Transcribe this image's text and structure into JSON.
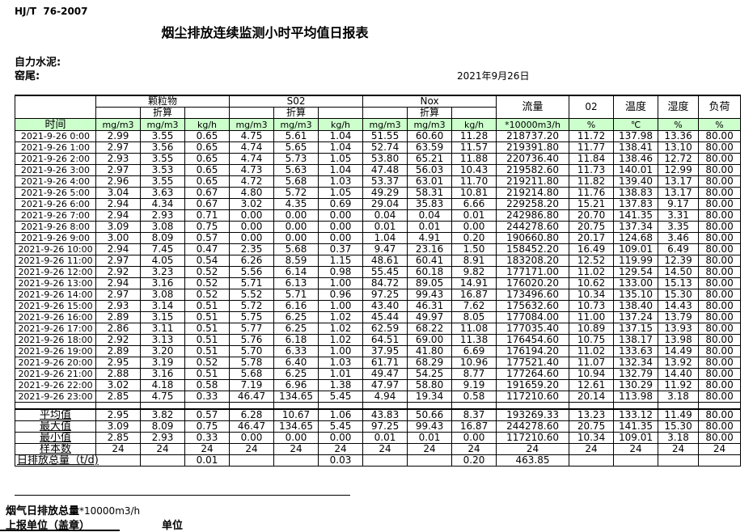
{
  "page": {
    "standard_code": "HJ/T  76-2007",
    "title": "烟尘排放连续监测小时平均值日报表",
    "company": "自力水泥:",
    "location": "窑尾:",
    "date": "2021年9月26日"
  },
  "colors": {
    "header_green": "#ccffcc"
  },
  "table": {
    "time_header": "时间",
    "converted_label": "折算",
    "groups": [
      {
        "label": "颗粒物",
        "units": [
          "mg/m3",
          "mg/m3",
          "kg/h"
        ]
      },
      {
        "label": "S02",
        "units": [
          "mg/m3",
          "mg/m3",
          "kg/h"
        ]
      },
      {
        "label": "Nox",
        "units": [
          "mg/m3",
          "mg/m3",
          "kg/h"
        ]
      }
    ],
    "single_columns": [
      {
        "label": "流量",
        "unit": "*10000m3/h"
      },
      {
        "label": "02",
        "unit": "%"
      },
      {
        "label": "温度",
        "unit": "℃"
      },
      {
        "label": "湿度",
        "unit": "%"
      },
      {
        "label": "负荷",
        "unit": "%"
      }
    ],
    "rows": [
      {
        "time": "2021-9-26 0:00",
        "values": [
          "2.99",
          "3.55",
          "0.65",
          "4.75",
          "5.61",
          "1.04",
          "51.55",
          "60.60",
          "11.28",
          "218737.20",
          "11.72",
          "137.98",
          "13.36",
          "80.00"
        ]
      },
      {
        "time": "2021-9-26 1:00",
        "values": [
          "2.97",
          "3.56",
          "0.65",
          "4.74",
          "5.65",
          "1.04",
          "52.74",
          "63.59",
          "11.57",
          "219391.80",
          "11.77",
          "138.41",
          "13.10",
          "80.00"
        ]
      },
      {
        "time": "2021-9-26 2:00",
        "values": [
          "2.93",
          "3.55",
          "0.65",
          "4.74",
          "5.73",
          "1.05",
          "53.80",
          "65.21",
          "11.88",
          "220736.40",
          "11.84",
          "138.46",
          "12.72",
          "80.00"
        ]
      },
      {
        "time": "2021-9-26 3:00",
        "values": [
          "2.97",
          "3.53",
          "0.65",
          "4.73",
          "5.63",
          "1.04",
          "47.48",
          "56.03",
          "10.43",
          "219582.60",
          "11.73",
          "140.01",
          "12.99",
          "80.00"
        ]
      },
      {
        "time": "2021-9-26 4:00",
        "values": [
          "2.96",
          "3.55",
          "0.65",
          "4.72",
          "5.68",
          "1.03",
          "53.37",
          "63.01",
          "11.70",
          "219211.80",
          "11.82",
          "139.40",
          "13.17",
          "80.00"
        ]
      },
      {
        "time": "2021-9-26 5:00",
        "values": [
          "3.04",
          "3.63",
          "0.67",
          "4.80",
          "5.72",
          "1.05",
          "49.29",
          "58.31",
          "10.81",
          "219214.80",
          "11.76",
          "138.83",
          "13.17",
          "80.00"
        ]
      },
      {
        "time": "2021-9-26 6:00",
        "values": [
          "2.94",
          "4.34",
          "0.67",
          "3.02",
          "4.35",
          "0.69",
          "29.04",
          "35.83",
          "6.66",
          "229258.20",
          "15.21",
          "137.83",
          "9.17",
          "80.00"
        ]
      },
      {
        "time": "2021-9-26 7:00",
        "values": [
          "2.94",
          "2.93",
          "0.71",
          "0.00",
          "0.00",
          "0.00",
          "0.04",
          "0.04",
          "0.01",
          "242986.80",
          "20.70",
          "141.35",
          "3.31",
          "80.00"
        ]
      },
      {
        "time": "2021-9-26 8:00",
        "values": [
          "3.09",
          "3.08",
          "0.75",
          "0.00",
          "0.00",
          "0.00",
          "0.01",
          "0.01",
          "0.00",
          "244278.60",
          "20.75",
          "137.34",
          "3.35",
          "80.00"
        ]
      },
      {
        "time": "2021-9-26 9:00",
        "values": [
          "3.00",
          "8.09",
          "0.57",
          "0.00",
          "0.00",
          "0.00",
          "1.04",
          "4.91",
          "0.20",
          "190660.80",
          "20.17",
          "124.68",
          "3.46",
          "80.00"
        ]
      },
      {
        "time": "2021-9-26 10:00",
        "values": [
          "2.94",
          "7.45",
          "0.47",
          "2.35",
          "5.68",
          "0.37",
          "9.47",
          "23.16",
          "1.50",
          "158452.20",
          "16.49",
          "109.01",
          "6.49",
          "80.00"
        ]
      },
      {
        "time": "2021-9-26 11:00",
        "values": [
          "2.97",
          "4.05",
          "0.54",
          "6.26",
          "8.59",
          "1.15",
          "48.61",
          "60.41",
          "8.91",
          "183208.20",
          "12.52",
          "119.99",
          "12.39",
          "80.00"
        ]
      },
      {
        "time": "2021-9-26 12:00",
        "values": [
          "2.92",
          "3.23",
          "0.52",
          "5.56",
          "6.14",
          "0.98",
          "55.45",
          "60.18",
          "9.82",
          "177171.00",
          "11.02",
          "129.54",
          "14.50",
          "80.00"
        ]
      },
      {
        "time": "2021-9-26 13:00",
        "values": [
          "2.94",
          "3.16",
          "0.52",
          "5.71",
          "6.13",
          "1.00",
          "84.72",
          "89.05",
          "14.91",
          "176020.20",
          "10.62",
          "133.00",
          "15.13",
          "80.00"
        ]
      },
      {
        "time": "2021-9-26 14:00",
        "values": [
          "2.97",
          "3.08",
          "0.52",
          "5.52",
          "5.71",
          "0.96",
          "97.25",
          "99.43",
          "16.87",
          "173496.60",
          "10.34",
          "135.10",
          "15.30",
          "80.00"
        ]
      },
      {
        "time": "2021-9-26 15:00",
        "values": [
          "2.93",
          "3.14",
          "0.51",
          "5.72",
          "6.16",
          "1.00",
          "43.40",
          "46.31",
          "7.62",
          "175632.60",
          "10.73",
          "138.40",
          "14.43",
          "80.00"
        ]
      },
      {
        "time": "2021-9-26 16:00",
        "values": [
          "2.89",
          "3.15",
          "0.51",
          "5.75",
          "6.25",
          "1.02",
          "45.44",
          "49.97",
          "8.05",
          "177084.00",
          "11.00",
          "137.24",
          "13.79",
          "80.00"
        ]
      },
      {
        "time": "2021-9-26 17:00",
        "values": [
          "2.86",
          "3.11",
          "0.51",
          "5.77",
          "6.25",
          "1.02",
          "62.59",
          "68.22",
          "11.08",
          "177035.40",
          "10.89",
          "137.15",
          "13.93",
          "80.00"
        ]
      },
      {
        "time": "2021-9-26 18:00",
        "values": [
          "2.92",
          "3.13",
          "0.51",
          "5.76",
          "6.18",
          "1.02",
          "64.51",
          "69.00",
          "11.38",
          "176454.60",
          "10.75",
          "138.17",
          "13.98",
          "80.00"
        ]
      },
      {
        "time": "2021-9-26 19:00",
        "values": [
          "2.89",
          "3.20",
          "0.51",
          "5.70",
          "6.33",
          "1.00",
          "37.95",
          "41.80",
          "6.69",
          "176194.20",
          "11.02",
          "133.63",
          "14.49",
          "80.00"
        ]
      },
      {
        "time": "2021-9-26 20:00",
        "values": [
          "2.95",
          "3.19",
          "0.52",
          "5.78",
          "6.40",
          "1.03",
          "61.71",
          "68.29",
          "10.96",
          "177521.40",
          "11.07",
          "132.34",
          "13.92",
          "80.00"
        ]
      },
      {
        "time": "2021-9-26 21:00",
        "values": [
          "2.88",
          "3.16",
          "0.51",
          "5.68",
          "6.25",
          "1.01",
          "49.47",
          "54.25",
          "8.77",
          "177264.60",
          "10.94",
          "132.79",
          "14.40",
          "80.00"
        ]
      },
      {
        "time": "2021-9-26 22:00",
        "values": [
          "3.02",
          "4.18",
          "0.58",
          "7.19",
          "6.96",
          "1.38",
          "47.97",
          "58.80",
          "9.19",
          "191659.20",
          "12.61",
          "130.29",
          "11.92",
          "80.00"
        ]
      },
      {
        "time": "2021-9-26 23:00",
        "values": [
          "2.85",
          "4.75",
          "0.33",
          "46.47",
          "134.65",
          "5.45",
          "4.94",
          "19.34",
          "0.58",
          "117210.60",
          "20.14",
          "113.98",
          "3.18",
          "80.00"
        ]
      }
    ],
    "summary_rows": [
      {
        "label": "平均值",
        "values": [
          "2.95",
          "3.82",
          "0.57",
          "6.28",
          "10.67",
          "1.06",
          "43.83",
          "50.66",
          "8.37",
          "193269.33",
          "13.23",
          "133.12",
          "11.49",
          "80.00"
        ]
      },
      {
        "label": "最大值",
        "values": [
          "3.09",
          "8.09",
          "0.75",
          "46.47",
          "134.65",
          "5.45",
          "97.25",
          "99.43",
          "16.87",
          "244278.60",
          "20.75",
          "141.35",
          "15.30",
          "80.00"
        ]
      },
      {
        "label": "最小值",
        "values": [
          "2.85",
          "2.93",
          "0.33",
          "0.00",
          "0.00",
          "0.00",
          "0.01",
          "0.01",
          "0.00",
          "117210.60",
          "10.34",
          "109.01",
          "3.18",
          "80.00"
        ]
      },
      {
        "label": "样本数",
        "values": [
          "24",
          "24",
          "24",
          "24",
          "24",
          "24",
          "24",
          "24",
          "24",
          "24",
          "24",
          "24",
          "24",
          "24"
        ]
      }
    ],
    "total_row": {
      "label": "日排放总量（t/d)",
      "values": [
        "",
        "0.01",
        "",
        "",
        "0.03",
        "",
        "",
        "0.20",
        "463.85",
        "",
        "",
        "",
        ""
      ]
    }
  },
  "footer": {
    "flue_total_label": "烟气日排放总量",
    "flue_total_unit": "*10000m3/h",
    "report_unit_label": "上报单位（盖章）",
    "unit_label": "单位"
  }
}
